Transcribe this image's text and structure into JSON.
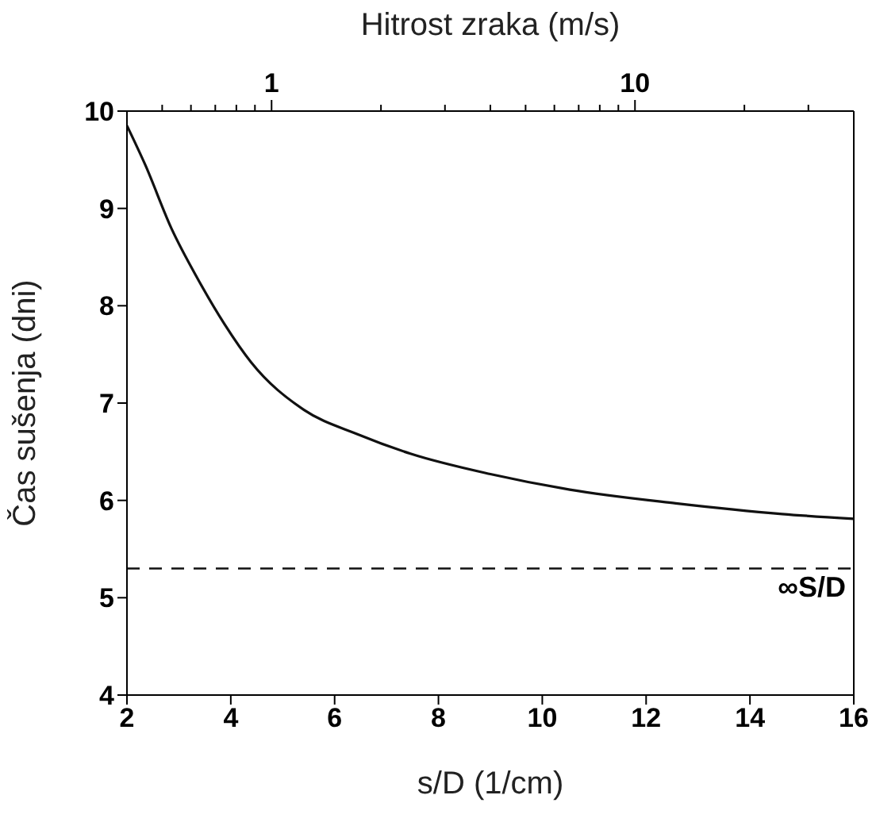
{
  "chart_data": {
    "type": "line",
    "xlabel": "s/D (1/cm)",
    "ylabel": "Čas sušenja (dni)",
    "x2label": "Hitrost zraka (m/s)",
    "x": [
      2,
      2.35,
      2.86,
      3.37,
      3.88,
      4.39,
      5.41,
      6.44,
      7.46,
      9.0,
      10.53,
      12.57,
      14.62,
      16
    ],
    "series": [
      {
        "color": "#111111",
        "values": [
          9.85,
          9.45,
          8.79,
          8.27,
          7.81,
          7.42,
          6.93,
          6.68,
          6.48,
          6.27,
          6.11,
          5.97,
          5.86,
          5.81
        ]
      }
    ],
    "xlim": [
      2,
      16
    ],
    "xticks": [
      2,
      4,
      6,
      8,
      10,
      12,
      14,
      16
    ],
    "ylim": [
      4,
      10
    ],
    "yticks": [
      4,
      5,
      6,
      7,
      8,
      9,
      10
    ],
    "x2lim": [
      0.4,
      40
    ],
    "log": "x2",
    "x2ticks": [
      {
        "value": 0.5,
        "label": null
      },
      {
        "value": 0.6,
        "label": null
      },
      {
        "value": 0.7,
        "label": null
      },
      {
        "value": 0.8,
        "label": null
      },
      {
        "value": 0.9,
        "label": null
      },
      1,
      {
        "value": 2,
        "label": null
      },
      {
        "value": 3,
        "label": null
      },
      {
        "value": 4,
        "label": null
      },
      {
        "value": 5,
        "label": null
      },
      {
        "value": 6,
        "label": null
      },
      {
        "value": 7,
        "label": null
      },
      {
        "value": 8,
        "label": null
      },
      {
        "value": 9,
        "label": null
      },
      10,
      {
        "value": 20,
        "label": null
      },
      {
        "value": 30,
        "label": null
      }
    ],
    "ref_lines": [
      {
        "axis": "y",
        "value": 5.3,
        "label": "∞S/D",
        "color": "#111111",
        "line_style": "dashed"
      }
    ],
    "grid": false,
    "legend": false,
    "marker": "none",
    "line_style": "solid"
  }
}
